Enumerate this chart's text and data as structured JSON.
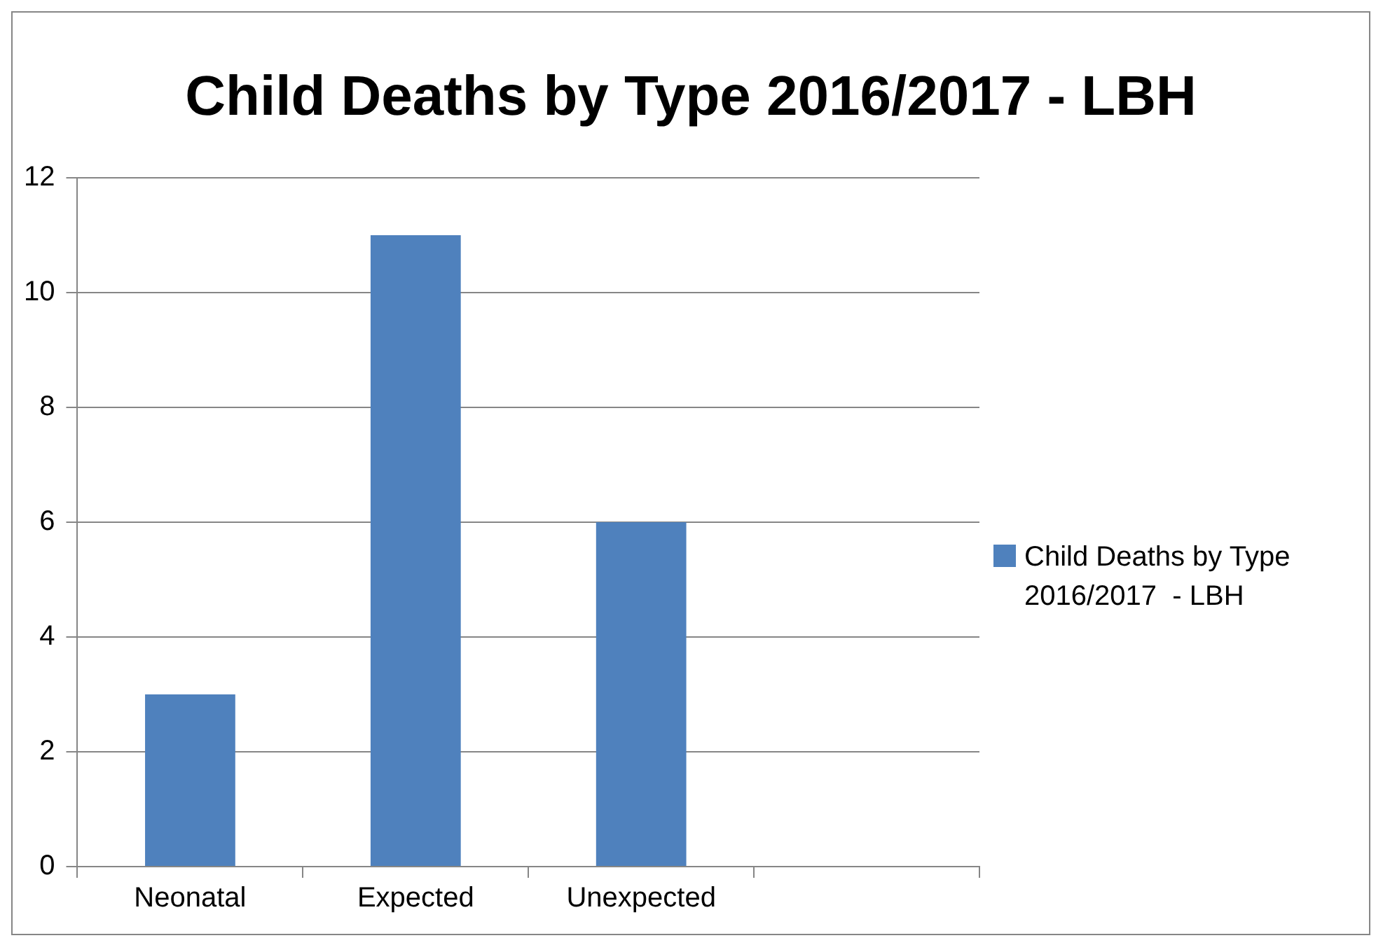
{
  "chart_data": {
    "type": "bar",
    "title": "Child Deaths by Type 2016/2017  - LBH",
    "categories": [
      "Neonatal",
      "Expected",
      "Unexpected",
      null
    ],
    "series": [
      {
        "name": "Child Deaths by Type 2016/2017  - LBH",
        "color": "#4f81bd",
        "values": [
          3,
          11,
          6,
          null
        ]
      }
    ],
    "ylim": [
      0,
      12
    ],
    "yticks": [
      0,
      2,
      4,
      6,
      8,
      10,
      12
    ],
    "grid": "y",
    "legend": "right"
  }
}
